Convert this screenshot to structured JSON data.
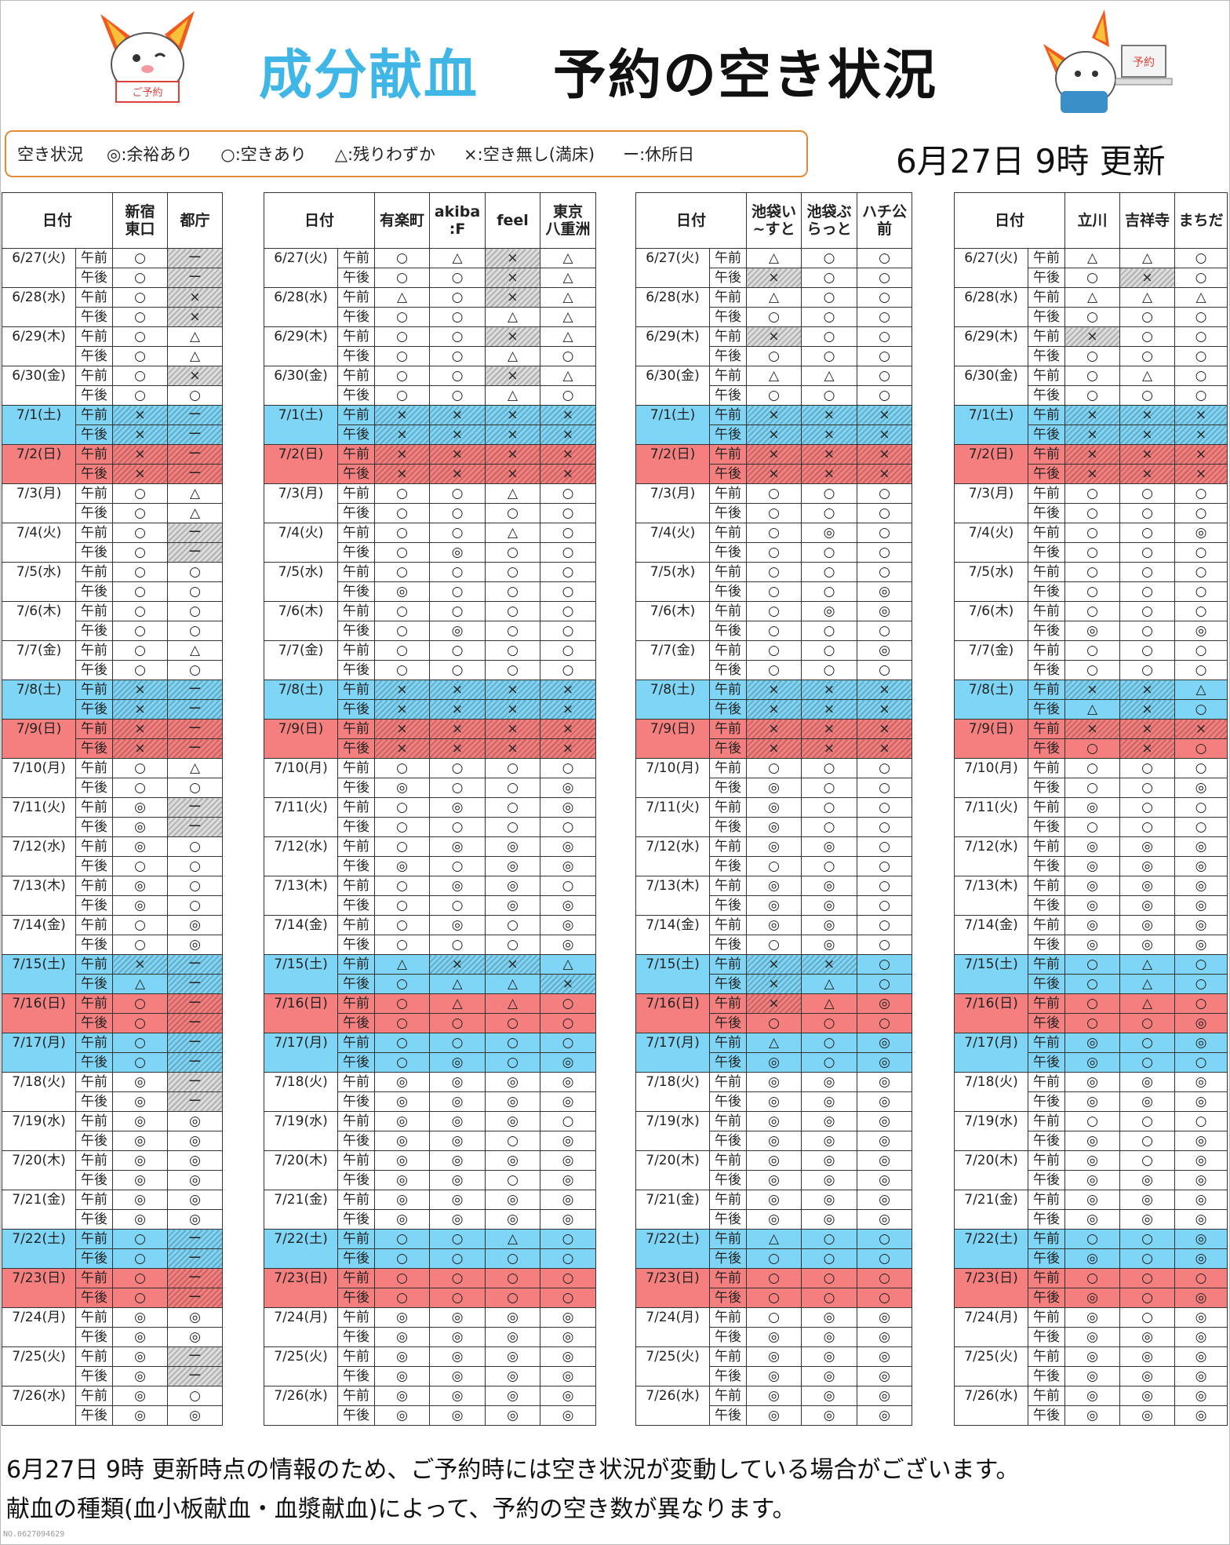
{
  "header": {
    "title_primary": "成分献血",
    "title_secondary": "予約の空き状況",
    "updated": "6月27日 9時 更新",
    "mascot_sign_left": "ご予約",
    "mascot_sign_right": "予約"
  },
  "legend": {
    "label": "空き状況",
    "items": [
      "◎:余裕あり",
      "○:空きあり",
      "△:残りわずか",
      "×:空き無し(満床)",
      "ー:休所日"
    ]
  },
  "colors": {
    "saturday": "#7fd5f5",
    "sunday": "#f57f7f",
    "accent_title": "#3fb6e6",
    "legend_border": "#e08a3a"
  },
  "column_header_date": "日付",
  "period_labels": [
    "午前",
    "午後"
  ],
  "dates": [
    {
      "label": "6/27(火)",
      "day": "weekday"
    },
    {
      "label": "6/28(水)",
      "day": "weekday"
    },
    {
      "label": "6/29(木)",
      "day": "weekday"
    },
    {
      "label": "6/30(金)",
      "day": "weekday"
    },
    {
      "label": "7/1(土)",
      "day": "sat"
    },
    {
      "label": "7/2(日)",
      "day": "sun"
    },
    {
      "label": "7/3(月)",
      "day": "weekday"
    },
    {
      "label": "7/4(火)",
      "day": "weekday"
    },
    {
      "label": "7/5(水)",
      "day": "weekday"
    },
    {
      "label": "7/6(木)",
      "day": "weekday"
    },
    {
      "label": "7/7(金)",
      "day": "weekday"
    },
    {
      "label": "7/8(土)",
      "day": "sat"
    },
    {
      "label": "7/9(日)",
      "day": "sun"
    },
    {
      "label": "7/10(月)",
      "day": "weekday"
    },
    {
      "label": "7/11(火)",
      "day": "weekday"
    },
    {
      "label": "7/12(水)",
      "day": "weekday"
    },
    {
      "label": "7/13(木)",
      "day": "weekday"
    },
    {
      "label": "7/14(金)",
      "day": "weekday"
    },
    {
      "label": "7/15(土)",
      "day": "sat"
    },
    {
      "label": "7/16(日)",
      "day": "sun"
    },
    {
      "label": "7/17(月)",
      "day": "sat"
    },
    {
      "label": "7/18(火)",
      "day": "weekday"
    },
    {
      "label": "7/19(水)",
      "day": "weekday"
    },
    {
      "label": "7/20(木)",
      "day": "weekday"
    },
    {
      "label": "7/21(金)",
      "day": "weekday"
    },
    {
      "label": "7/22(土)",
      "day": "sat"
    },
    {
      "label": "7/23(日)",
      "day": "sun"
    },
    {
      "label": "7/24(月)",
      "day": "weekday"
    },
    {
      "label": "7/25(火)",
      "day": "weekday"
    },
    {
      "label": "7/26(水)",
      "day": "weekday"
    }
  ],
  "tables": [
    {
      "sites": [
        "新宿\n東口",
        "都庁"
      ],
      "rows": [
        [
          "○",
          "ー"
        ],
        [
          "○",
          "ー"
        ],
        [
          "○",
          "×"
        ],
        [
          "○",
          "×"
        ],
        [
          "○",
          "△"
        ],
        [
          "○",
          "△"
        ],
        [
          "○",
          "×"
        ],
        [
          "○",
          "○"
        ],
        [
          "×",
          "ー"
        ],
        [
          "×",
          "ー"
        ],
        [
          "×",
          "ー"
        ],
        [
          "×",
          "ー"
        ],
        [
          "○",
          "△"
        ],
        [
          "○",
          "△"
        ],
        [
          "○",
          "ー"
        ],
        [
          "○",
          "ー"
        ],
        [
          "○",
          "○"
        ],
        [
          "○",
          "○"
        ],
        [
          "○",
          "○"
        ],
        [
          "○",
          "○"
        ],
        [
          "○",
          "△"
        ],
        [
          "○",
          "○"
        ],
        [
          "×",
          "ー"
        ],
        [
          "×",
          "ー"
        ],
        [
          "×",
          "ー"
        ],
        [
          "×",
          "ー"
        ],
        [
          "○",
          "△"
        ],
        [
          "○",
          "○"
        ],
        [
          "◎",
          "ー"
        ],
        [
          "◎",
          "ー"
        ],
        [
          "◎",
          "○"
        ],
        [
          "○",
          "○"
        ],
        [
          "◎",
          "○"
        ],
        [
          "◎",
          "○"
        ],
        [
          "○",
          "◎"
        ],
        [
          "○",
          "◎"
        ],
        [
          "×",
          "ー"
        ],
        [
          "△",
          "ー"
        ],
        [
          "○",
          "ー"
        ],
        [
          "○",
          "ー"
        ],
        [
          "○",
          "ー"
        ],
        [
          "○",
          "ー"
        ],
        [
          "◎",
          "ー"
        ],
        [
          "◎",
          "ー"
        ],
        [
          "◎",
          "◎"
        ],
        [
          "◎",
          "◎"
        ],
        [
          "◎",
          "◎"
        ],
        [
          "◎",
          "◎"
        ],
        [
          "◎",
          "◎"
        ],
        [
          "◎",
          "◎"
        ],
        [
          "○",
          "ー"
        ],
        [
          "○",
          "ー"
        ],
        [
          "○",
          "ー"
        ],
        [
          "○",
          "ー"
        ],
        [
          "◎",
          "◎"
        ],
        [
          "◎",
          "◎"
        ],
        [
          "◎",
          "ー"
        ],
        [
          "◎",
          "ー"
        ],
        [
          "◎",
          "○"
        ],
        [
          "◎",
          "◎"
        ]
      ]
    },
    {
      "sites": [
        "有楽町",
        "akiba\n:F",
        "feel",
        "東京\n八重洲"
      ],
      "rows": [
        [
          "○",
          "△",
          "×",
          "△"
        ],
        [
          "○",
          "○",
          "×",
          "△"
        ],
        [
          "△",
          "○",
          "×",
          "△"
        ],
        [
          "○",
          "○",
          "△",
          "△"
        ],
        [
          "○",
          "○",
          "×",
          "△"
        ],
        [
          "○",
          "○",
          "△",
          "○"
        ],
        [
          "○",
          "○",
          "×",
          "△"
        ],
        [
          "○",
          "○",
          "△",
          "○"
        ],
        [
          "×",
          "×",
          "×",
          "×"
        ],
        [
          "×",
          "×",
          "×",
          "×"
        ],
        [
          "×",
          "×",
          "×",
          "×"
        ],
        [
          "×",
          "×",
          "×",
          "×"
        ],
        [
          "○",
          "○",
          "△",
          "○"
        ],
        [
          "○",
          "○",
          "○",
          "○"
        ],
        [
          "○",
          "○",
          "△",
          "○"
        ],
        [
          "○",
          "◎",
          "○",
          "○"
        ],
        [
          "○",
          "○",
          "○",
          "○"
        ],
        [
          "◎",
          "○",
          "○",
          "○"
        ],
        [
          "○",
          "○",
          "○",
          "○"
        ],
        [
          "○",
          "◎",
          "○",
          "○"
        ],
        [
          "○",
          "○",
          "○",
          "○"
        ],
        [
          "○",
          "○",
          "○",
          "○"
        ],
        [
          "×",
          "×",
          "×",
          "×"
        ],
        [
          "×",
          "×",
          "×",
          "×"
        ],
        [
          "×",
          "×",
          "×",
          "×"
        ],
        [
          "×",
          "×",
          "×",
          "×"
        ],
        [
          "○",
          "○",
          "○",
          "○"
        ],
        [
          "◎",
          "○",
          "○",
          "◎"
        ],
        [
          "○",
          "◎",
          "○",
          "◎"
        ],
        [
          "○",
          "○",
          "○",
          "○"
        ],
        [
          "○",
          "◎",
          "◎",
          "◎"
        ],
        [
          "◎",
          "○",
          "◎",
          "◎"
        ],
        [
          "○",
          "◎",
          "◎",
          "○"
        ],
        [
          "○",
          "○",
          "◎",
          "◎"
        ],
        [
          "○",
          "◎",
          "○",
          "◎"
        ],
        [
          "○",
          "○",
          "○",
          "◎"
        ],
        [
          "△",
          "×",
          "×",
          "△"
        ],
        [
          "○",
          "△",
          "△",
          "×"
        ],
        [
          "○",
          "△",
          "△",
          "○"
        ],
        [
          "○",
          "○",
          "○",
          "○"
        ],
        [
          "○",
          "○",
          "○",
          "○"
        ],
        [
          "○",
          "◎",
          "○",
          "◎"
        ],
        [
          "◎",
          "◎",
          "◎",
          "◎"
        ],
        [
          "◎",
          "◎",
          "◎",
          "◎"
        ],
        [
          "◎",
          "◎",
          "◎",
          "○"
        ],
        [
          "◎",
          "◎",
          "○",
          "◎"
        ],
        [
          "◎",
          "◎",
          "◎",
          "◎"
        ],
        [
          "◎",
          "◎",
          "○",
          "◎"
        ],
        [
          "◎",
          "◎",
          "◎",
          "◎"
        ],
        [
          "◎",
          "◎",
          "◎",
          "◎"
        ],
        [
          "○",
          "○",
          "△",
          "○"
        ],
        [
          "○",
          "○",
          "○",
          "○"
        ],
        [
          "○",
          "○",
          "○",
          "○"
        ],
        [
          "○",
          "○",
          "○",
          "○"
        ],
        [
          "◎",
          "◎",
          "◎",
          "◎"
        ],
        [
          "◎",
          "◎",
          "◎",
          "◎"
        ],
        [
          "◎",
          "◎",
          "◎",
          "◎"
        ],
        [
          "◎",
          "◎",
          "◎",
          "◎"
        ],
        [
          "◎",
          "◎",
          "◎",
          "◎"
        ],
        [
          "◎",
          "◎",
          "◎",
          "◎"
        ]
      ]
    },
    {
      "sites": [
        "池袋い\n~すと",
        "池袋ぶ\nらっと",
        "ハチ公\n前"
      ],
      "rows": [
        [
          "△",
          "○",
          "○"
        ],
        [
          "×",
          "○",
          "○"
        ],
        [
          "△",
          "○",
          "○"
        ],
        [
          "○",
          "○",
          "○"
        ],
        [
          "×",
          "○",
          "○"
        ],
        [
          "○",
          "○",
          "○"
        ],
        [
          "△",
          "△",
          "○"
        ],
        [
          "○",
          "○",
          "○"
        ],
        [
          "×",
          "×",
          "×"
        ],
        [
          "×",
          "×",
          "×"
        ],
        [
          "×",
          "×",
          "×"
        ],
        [
          "×",
          "×",
          "×"
        ],
        [
          "○",
          "○",
          "○"
        ],
        [
          "○",
          "○",
          "○"
        ],
        [
          "○",
          "◎",
          "○"
        ],
        [
          "○",
          "○",
          "○"
        ],
        [
          "○",
          "○",
          "○"
        ],
        [
          "○",
          "○",
          "◎"
        ],
        [
          "○",
          "◎",
          "◎"
        ],
        [
          "○",
          "○",
          "○"
        ],
        [
          "○",
          "○",
          "◎"
        ],
        [
          "○",
          "○",
          "○"
        ],
        [
          "×",
          "×",
          "×"
        ],
        [
          "×",
          "×",
          "×"
        ],
        [
          "×",
          "×",
          "×"
        ],
        [
          "×",
          "×",
          "×"
        ],
        [
          "○",
          "○",
          "○"
        ],
        [
          "◎",
          "○",
          "○"
        ],
        [
          "◎",
          "○",
          "○"
        ],
        [
          "◎",
          "○",
          "○"
        ],
        [
          "◎",
          "◎",
          "○"
        ],
        [
          "○",
          "○",
          "○"
        ],
        [
          "◎",
          "◎",
          "○"
        ],
        [
          "◎",
          "◎",
          "○"
        ],
        [
          "◎",
          "◎",
          "○"
        ],
        [
          "○",
          "◎",
          "○"
        ],
        [
          "×",
          "×",
          "○"
        ],
        [
          "×",
          "△",
          "○"
        ],
        [
          "×",
          "△",
          "◎"
        ],
        [
          "○",
          "○",
          "○"
        ],
        [
          "△",
          "○",
          "◎"
        ],
        [
          "◎",
          "○",
          "◎"
        ],
        [
          "◎",
          "◎",
          "◎"
        ],
        [
          "◎",
          "◎",
          "◎"
        ],
        [
          "◎",
          "◎",
          "◎"
        ],
        [
          "◎",
          "◎",
          "◎"
        ],
        [
          "◎",
          "◎",
          "◎"
        ],
        [
          "◎",
          "◎",
          "◎"
        ],
        [
          "◎",
          "◎",
          "◎"
        ],
        [
          "◎",
          "◎",
          "◎"
        ],
        [
          "△",
          "○",
          "○"
        ],
        [
          "○",
          "○",
          "○"
        ],
        [
          "○",
          "○",
          "○"
        ],
        [
          "○",
          "○",
          "○"
        ],
        [
          "○",
          "◎",
          "◎"
        ],
        [
          "◎",
          "◎",
          "◎"
        ],
        [
          "◎",
          "◎",
          "◎"
        ],
        [
          "◎",
          "◎",
          "◎"
        ],
        [
          "◎",
          "◎",
          "◎"
        ],
        [
          "◎",
          "◎",
          "◎"
        ]
      ]
    },
    {
      "sites": [
        "立川",
        "吉祥寺",
        "まちだ"
      ],
      "rows": [
        [
          "△",
          "△",
          "○"
        ],
        [
          "○",
          "×",
          "○"
        ],
        [
          "△",
          "△",
          "△"
        ],
        [
          "○",
          "○",
          "○"
        ],
        [
          "×",
          "○",
          "○"
        ],
        [
          "○",
          "○",
          "○"
        ],
        [
          "○",
          "△",
          "○"
        ],
        [
          "○",
          "○",
          "○"
        ],
        [
          "×",
          "×",
          "×"
        ],
        [
          "×",
          "×",
          "×"
        ],
        [
          "×",
          "×",
          "×"
        ],
        [
          "×",
          "×",
          "×"
        ],
        [
          "○",
          "○",
          "○"
        ],
        [
          "○",
          "○",
          "○"
        ],
        [
          "○",
          "○",
          "◎"
        ],
        [
          "○",
          "○",
          "○"
        ],
        [
          "○",
          "○",
          "○"
        ],
        [
          "○",
          "○",
          "○"
        ],
        [
          "○",
          "○",
          "○"
        ],
        [
          "◎",
          "○",
          "◎"
        ],
        [
          "○",
          "○",
          "○"
        ],
        [
          "○",
          "○",
          "○"
        ],
        [
          "×",
          "×",
          "△"
        ],
        [
          "△",
          "×",
          "○"
        ],
        [
          "×",
          "×",
          "×"
        ],
        [
          "○",
          "×",
          "○"
        ],
        [
          "○",
          "○",
          "○"
        ],
        [
          "○",
          "○",
          "◎"
        ],
        [
          "◎",
          "○",
          "○"
        ],
        [
          "○",
          "○",
          "○"
        ],
        [
          "◎",
          "◎",
          "◎"
        ],
        [
          "◎",
          "◎",
          "◎"
        ],
        [
          "◎",
          "◎",
          "◎"
        ],
        [
          "◎",
          "◎",
          "◎"
        ],
        [
          "◎",
          "◎",
          "◎"
        ],
        [
          "◎",
          "◎",
          "◎"
        ],
        [
          "○",
          "△",
          "○"
        ],
        [
          "○",
          "△",
          "○"
        ],
        [
          "○",
          "△",
          "○"
        ],
        [
          "○",
          "○",
          "◎"
        ],
        [
          "◎",
          "○",
          "◎"
        ],
        [
          "◎",
          "○",
          "○"
        ],
        [
          "◎",
          "◎",
          "◎"
        ],
        [
          "◎",
          "◎",
          "◎"
        ],
        [
          "○",
          "○",
          "○"
        ],
        [
          "◎",
          "○",
          "◎"
        ],
        [
          "◎",
          "○",
          "◎"
        ],
        [
          "◎",
          "◎",
          "◎"
        ],
        [
          "◎",
          "◎",
          "◎"
        ],
        [
          "◎",
          "◎",
          "◎"
        ],
        [
          "○",
          "○",
          "◎"
        ],
        [
          "◎",
          "○",
          "◎"
        ],
        [
          "○",
          "○",
          "○"
        ],
        [
          "◎",
          "○",
          "◎"
        ],
        [
          "◎",
          "○",
          "◎"
        ],
        [
          "◎",
          "◎",
          "◎"
        ],
        [
          "◎",
          "◎",
          "◎"
        ],
        [
          "◎",
          "◎",
          "◎"
        ],
        [
          "◎",
          "◎",
          "◎"
        ],
        [
          "◎",
          "◎",
          "◎"
        ]
      ]
    }
  ],
  "notes": [
    "6月27日 9時 更新時点の情報のため、ご予約時には空き状況が変動している場合がございます。",
    "献血の種類(血小板献血・血漿献血)によって、予約の空き数が異なります。"
  ],
  "stamp": "NO.0627094629"
}
